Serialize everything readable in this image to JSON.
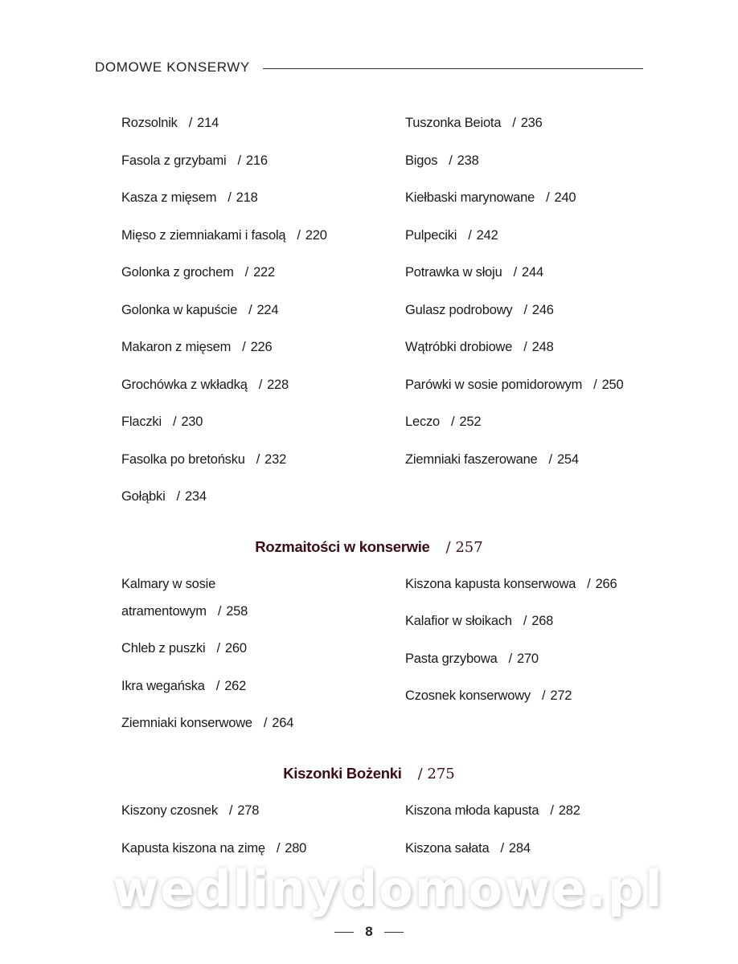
{
  "header": {
    "title": "DOMOWE KONSERWY"
  },
  "section1": {
    "left": [
      {
        "name": "Rozsolnik",
        "page": "214"
      },
      {
        "name": "Fasola z grzybami",
        "page": "216"
      },
      {
        "name": "Kasza z mięsem",
        "page": "218"
      },
      {
        "name": "Mięso z ziemniakami i fasolą",
        "page": "220"
      },
      {
        "name": "Golonka z grochem",
        "page": "222"
      },
      {
        "name": "Golonka w kapuście",
        "page": "224"
      },
      {
        "name": "Makaron z mięsem",
        "page": "226"
      },
      {
        "name": "Grochówka z wkładką",
        "page": "228"
      },
      {
        "name": "Flaczki",
        "page": "230"
      },
      {
        "name": "Fasolka po bretońsku",
        "page": "232"
      },
      {
        "name": "Gołąbki",
        "page": "234"
      }
    ],
    "right": [
      {
        "name": "Tuszonka Beiota",
        "page": "236"
      },
      {
        "name": "Bigos",
        "page": "238"
      },
      {
        "name": "Kiełbaski marynowane",
        "page": "240"
      },
      {
        "name": "Pulpeciki",
        "page": "242"
      },
      {
        "name": "Potrawka w słoju",
        "page": "244"
      },
      {
        "name": "Gulasz podrobowy",
        "page": "246"
      },
      {
        "name": "Wątróbki drobiowe",
        "page": "248"
      },
      {
        "name": "Parówki w sosie pomidorowym",
        "page": "250"
      },
      {
        "name": "Leczo",
        "page": "252"
      },
      {
        "name": "Ziemniaki faszerowane",
        "page": "254"
      }
    ]
  },
  "section2": {
    "title": "Rozmaitości w konserwie",
    "page": "257",
    "left_first_line": "Kalmary w sosie",
    "left": [
      {
        "name": "atramentowym",
        "page": "258"
      },
      {
        "name": "Chleb z puszki",
        "page": "260"
      },
      {
        "name": "Ikra wegańska",
        "page": "262"
      },
      {
        "name": "Ziemniaki konserwowe",
        "page": "264"
      }
    ],
    "right": [
      {
        "name": "Kiszona kapusta konserwowa",
        "page": "266"
      },
      {
        "name": "Kalafior w słoikach",
        "page": "268"
      },
      {
        "name": "Pasta grzybowa",
        "page": "270"
      },
      {
        "name": "Czosnek konserwowy",
        "page": "272"
      }
    ]
  },
  "section3": {
    "title": "Kiszonki Bożenki",
    "page": "275",
    "left": [
      {
        "name": "Kiszony czosnek",
        "page": "278"
      },
      {
        "name": "Kapusta kiszona na zimę",
        "page": "280"
      }
    ],
    "right": [
      {
        "name": "Kiszona młoda kapusta",
        "page": "282"
      },
      {
        "name": "Kiszona sałata",
        "page": "284"
      }
    ]
  },
  "footer": {
    "page_number": "8",
    "watermark": "wedlinydomowe.pl"
  },
  "colors": {
    "section_heading": "#3a0e12",
    "text": "#1a1a1a"
  }
}
